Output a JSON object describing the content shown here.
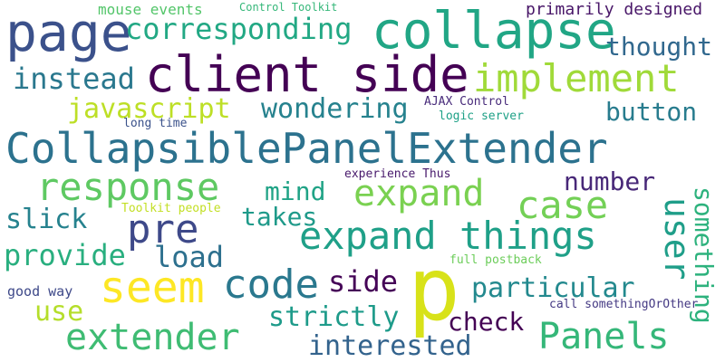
{
  "words": [
    {
      "id": "CollapsiblePanelExtender",
      "text": "CollapsiblePanelExtender",
      "color": "#2c728e"
    },
    {
      "id": "client-side",
      "text": "client side",
      "color": "#440154"
    },
    {
      "id": "collapse",
      "text": "collapse",
      "color": "#21a685"
    },
    {
      "id": "page",
      "text": "page",
      "color": "#3b518b"
    },
    {
      "id": "p",
      "text": "p",
      "color": "#d8e219"
    },
    {
      "id": "expand-things",
      "text": "expand things",
      "color": "#1fa088"
    },
    {
      "id": "implement",
      "text": "implement",
      "color": "#a0da39"
    },
    {
      "id": "response",
      "text": "response",
      "color": "#5ec962"
    },
    {
      "id": "expand",
      "text": "expand",
      "color": "#7ad151"
    },
    {
      "id": "seem",
      "text": "seem",
      "color": "#fde725"
    },
    {
      "id": "code",
      "text": "code",
      "color": "#2a788e"
    },
    {
      "id": "extender",
      "text": "extender",
      "color": "#3fbc73"
    },
    {
      "id": "Panels",
      "text": "Panels",
      "color": "#35b779"
    },
    {
      "id": "corresponding",
      "text": "corresponding",
      "color": "#22a884"
    },
    {
      "id": "pre",
      "text": "pre",
      "color": "#3e4989"
    },
    {
      "id": "case",
      "text": "case",
      "color": "#73d056"
    },
    {
      "id": "user",
      "text": "user",
      "color": "#1f9e89"
    },
    {
      "id": "thought",
      "text": "thought",
      "color": "#31688e"
    },
    {
      "id": "javascript",
      "text": "javascript",
      "color": "#bddf26"
    },
    {
      "id": "wondering",
      "text": "wondering",
      "color": "#26828e"
    },
    {
      "id": "instead",
      "text": "instead",
      "color": "#2a788e"
    },
    {
      "id": "button",
      "text": "button",
      "color": "#287c8e"
    },
    {
      "id": "number",
      "text": "number",
      "color": "#482878"
    },
    {
      "id": "mind",
      "text": "mind",
      "color": "#20a386"
    },
    {
      "id": "takes",
      "text": "takes",
      "color": "#1f9a8a"
    },
    {
      "id": "slick",
      "text": "slick",
      "color": "#26828e"
    },
    {
      "id": "load",
      "text": "load",
      "color": "#2d708e"
    },
    {
      "id": "provide",
      "text": "provide",
      "color": "#29af7f"
    },
    {
      "id": "something",
      "text": "something",
      "color": "#2db27d"
    },
    {
      "id": "particular",
      "text": "particular",
      "color": "#23898e"
    },
    {
      "id": "side",
      "text": "side",
      "color": "#450457"
    },
    {
      "id": "strictly",
      "text": "strictly",
      "color": "#1e9b8a"
    },
    {
      "id": "check",
      "text": "check",
      "color": "#440154"
    },
    {
      "id": "interested",
      "text": "interested",
      "color": "#33638d"
    },
    {
      "id": "use",
      "text": "use",
      "color": "#b5de2b"
    },
    {
      "id": "primarily-designed",
      "text": "primarily designed",
      "color": "#481668"
    },
    {
      "id": "mouse-events",
      "text": "mouse events",
      "color": "#52c569"
    },
    {
      "id": "Control-Toolkit",
      "text": "Control Toolkit",
      "color": "#35b779"
    },
    {
      "id": "AJAX-Control",
      "text": "AJAX Control",
      "color": "#472a7a"
    },
    {
      "id": "logic-server",
      "text": "logic server",
      "color": "#1fa187"
    },
    {
      "id": "long-time",
      "text": "long time",
      "color": "#3b528b"
    },
    {
      "id": "experience-Thus",
      "text": "experience Thus",
      "color": "#481a6c"
    },
    {
      "id": "Toolkit-people",
      "text": "Toolkit people",
      "color": "#c2df23"
    },
    {
      "id": "full-postback",
      "text": "full postback",
      "color": "#6ccd5a"
    },
    {
      "id": "good-way",
      "text": "good way",
      "color": "#3e4989"
    },
    {
      "id": "call-somethingOrOther",
      "text": "call somethingOrOther",
      "color": "#443983"
    }
  ]
}
